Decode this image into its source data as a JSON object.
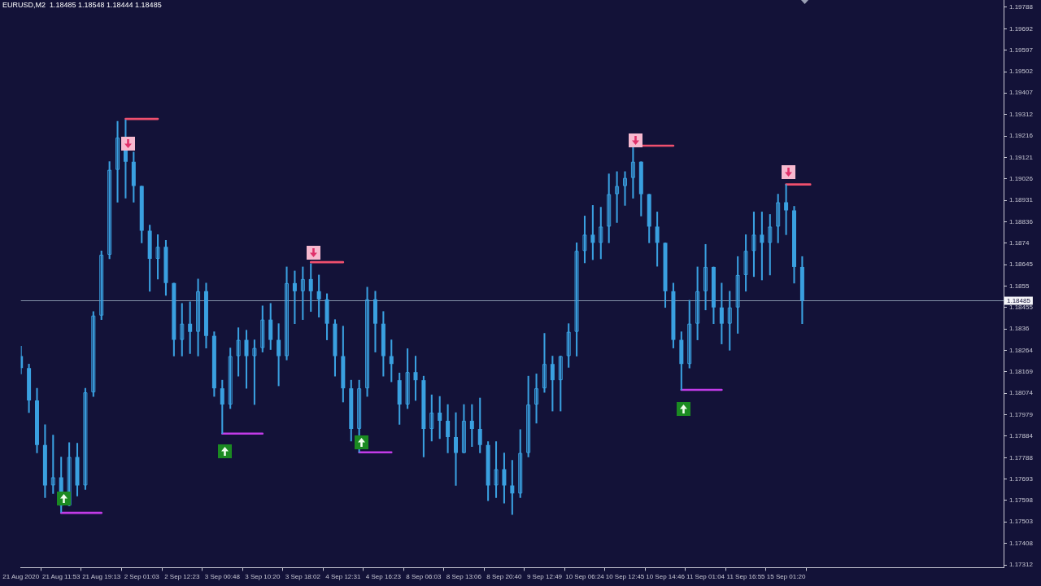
{
  "chart_data": {
    "type": "candlestick",
    "title": "EURUSD,M2  1.18485 1.18548 1.18444 1.18485",
    "categories": [
      "21 Aug 2020",
      null,
      null,
      null,
      null,
      "21 Aug 11:53",
      null,
      null,
      null,
      null,
      "21 Aug 19:13",
      null,
      null,
      null,
      null,
      "2 Sep 01:03",
      null,
      null,
      null,
      null,
      "2 Sep 12:23",
      null,
      null,
      null,
      null,
      "3 Sep 00:48",
      null,
      null,
      null,
      null,
      "3 Sep 10:20",
      null,
      null,
      null,
      null,
      "3 Sep 18:02",
      null,
      null,
      null,
      null,
      "4 Sep 12:31",
      null,
      null,
      null,
      null,
      "4 Sep 16:23",
      null,
      null,
      null,
      null,
      "8 Sep 06:03",
      null,
      null,
      null,
      null,
      "8 Sep 13:06",
      null,
      null,
      null,
      null,
      "8 Sep 20:40",
      null,
      null,
      null,
      null,
      "9 Sep 12:49",
      null,
      null,
      null,
      null,
      "10 Sep 06:24",
      null,
      null,
      null,
      null,
      "10 Sep 12:45",
      null,
      null,
      null,
      null,
      "10 Sep 14:46",
      null,
      null,
      null,
      null,
      "11 Sep 01:04",
      null,
      null,
      null,
      null,
      "11 Sep 16:55",
      null,
      null,
      null,
      null,
      "15 Sep 01:20",
      null,
      null,
      null,
      null,
      null,
      null,
      null,
      null,
      null,
      null,
      null,
      null,
      null,
      null,
      null,
      null,
      null,
      null,
      null,
      null,
      null,
      null,
      null,
      null,
      null,
      null,
      null
    ],
    "series": [
      {
        "color": "#3aa0e0",
        "ohlc": [
          [
            1.18239,
            1.18283,
            1.1816,
            1.18186
          ],
          [
            1.18186,
            1.18204,
            1.17988,
            1.18042
          ],
          [
            1.18042,
            1.18096,
            1.17809,
            1.17844
          ],
          [
            1.17844,
            1.17934,
            1.17611,
            1.17665
          ],
          [
            1.17665,
            1.17888,
            1.17629,
            1.17701
          ],
          [
            1.17701,
            1.17791,
            1.17546,
            1.17575
          ],
          [
            1.17575,
            1.17855,
            1.17575,
            1.17791
          ],
          [
            1.17791,
            1.17852,
            1.17618,
            1.17665
          ],
          [
            1.17665,
            1.18096,
            1.17647,
            1.18078
          ],
          [
            1.18078,
            1.18437,
            1.1806,
            1.18419
          ],
          [
            1.18419,
            1.18706,
            1.18401,
            1.18689
          ],
          [
            1.18689,
            1.19102,
            1.18671,
            1.19066
          ],
          [
            1.19066,
            1.19281,
            1.18922,
            1.19209
          ],
          [
            1.19209,
            1.19288,
            1.1894,
            1.19102
          ],
          [
            1.19102,
            1.19145,
            1.18922,
            1.18994
          ],
          [
            1.18994,
            1.18994,
            1.18742,
            1.18796
          ],
          [
            1.18796,
            1.18821,
            1.18527,
            1.18671
          ],
          [
            1.18671,
            1.18778,
            1.18581,
            1.18724
          ],
          [
            1.18724,
            1.18753,
            1.18509,
            1.18563
          ],
          [
            1.18563,
            1.18563,
            1.18239,
            1.18311
          ],
          [
            1.18311,
            1.18473,
            1.18239,
            1.18383
          ],
          [
            1.18383,
            1.1848,
            1.1825,
            1.18347
          ],
          [
            1.18347,
            1.18581,
            1.18239,
            1.18527
          ],
          [
            1.18527,
            1.18563,
            1.18275,
            1.18329
          ],
          [
            1.18329,
            1.18347,
            1.1806,
            1.18096
          ],
          [
            1.18096,
            1.18132,
            1.17895,
            1.18024
          ],
          [
            1.18024,
            1.18275,
            1.18006,
            1.18239
          ],
          [
            1.18239,
            1.18365,
            1.1815,
            1.18311
          ],
          [
            1.18311,
            1.18354,
            1.18096,
            1.18239
          ],
          [
            1.18239,
            1.18311,
            1.18024,
            1.18275
          ],
          [
            1.18275,
            1.18462,
            1.18257,
            1.18401
          ],
          [
            1.18401,
            1.18473,
            1.18268,
            1.18311
          ],
          [
            1.18311,
            1.18383,
            1.18107,
            1.18239
          ],
          [
            1.18239,
            1.18635,
            1.18222,
            1.18563
          ],
          [
            1.18563,
            1.18617,
            1.18383,
            1.18527
          ],
          [
            1.18527,
            1.18635,
            1.18401,
            1.18581
          ],
          [
            1.18581,
            1.18649,
            1.18437,
            1.18527
          ],
          [
            1.18527,
            1.18599,
            1.18412,
            1.18491
          ],
          [
            1.18491,
            1.18516,
            1.18311,
            1.18383
          ],
          [
            1.18383,
            1.18401,
            1.1815,
            1.18239
          ],
          [
            1.18239,
            1.18372,
            1.18035,
            1.18096
          ],
          [
            1.18096,
            1.18132,
            1.17862,
            1.17916
          ],
          [
            1.17916,
            1.18132,
            1.17812,
            1.18096
          ],
          [
            1.18096,
            1.18545,
            1.1806,
            1.18491
          ],
          [
            1.18491,
            1.18527,
            1.18257,
            1.18383
          ],
          [
            1.18383,
            1.18437,
            1.1815,
            1.18239
          ],
          [
            1.18239,
            1.18311,
            1.18125,
            1.18204
          ],
          [
            1.18132,
            1.18164,
            1.17936,
            1.18024
          ],
          [
            1.18024,
            1.18272,
            1.18006,
            1.18168
          ],
          [
            1.18168,
            1.18239,
            1.18042,
            1.18132
          ],
          [
            1.18132,
            1.1815,
            1.17791,
            1.17916
          ],
          [
            1.17916,
            1.18067,
            1.17862,
            1.17988
          ],
          [
            1.17988,
            1.1806,
            1.17873,
            1.17952
          ],
          [
            1.17952,
            1.18024,
            1.17809,
            1.1788
          ],
          [
            1.1788,
            1.17988,
            1.17665,
            1.17809
          ],
          [
            1.17809,
            1.18024,
            1.17809,
            1.17952
          ],
          [
            1.17952,
            1.18024,
            1.17837,
            1.17916
          ],
          [
            1.17916,
            1.18053,
            1.17809,
            1.17844
          ],
          [
            1.17844,
            1.17859,
            1.17597,
            1.17665
          ],
          [
            1.17665,
            1.17859,
            1.17611,
            1.17737
          ],
          [
            1.17737,
            1.17809,
            1.17586,
            1.17665
          ],
          [
            1.17665,
            1.17776,
            1.17536,
            1.17629
          ],
          [
            1.17629,
            1.17913,
            1.17611,
            1.17809
          ],
          [
            1.17809,
            1.1815,
            1.17791,
            1.18024
          ],
          [
            1.18024,
            1.1816,
            1.17941,
            1.18096
          ],
          [
            1.18096,
            1.1834,
            1.18078,
            1.18204
          ],
          [
            1.18204,
            1.18239,
            1.17995,
            1.18132
          ],
          [
            1.18132,
            1.18239,
            1.17995,
            1.18239
          ],
          [
            1.18239,
            1.18383,
            1.18189,
            1.18347
          ],
          [
            1.18347,
            1.18742,
            1.18239,
            1.18706
          ],
          [
            1.18706,
            1.18861,
            1.18653,
            1.18778
          ],
          [
            1.18778,
            1.18908,
            1.18667,
            1.18742
          ],
          [
            1.18742,
            1.189,
            1.18671,
            1.18814
          ],
          [
            1.18814,
            1.19048,
            1.18742,
            1.18958
          ],
          [
            1.18958,
            1.19058,
            1.18832,
            1.18994
          ],
          [
            1.18994,
            1.19058,
            1.18908,
            1.1903
          ],
          [
            1.1903,
            1.19173,
            1.1894,
            1.19102
          ],
          [
            1.19102,
            1.19102,
            1.18861,
            1.18958
          ],
          [
            1.18958,
            1.18958,
            1.18742,
            1.18814
          ],
          [
            1.18814,
            1.18879,
            1.18638,
            1.18742
          ],
          [
            1.18742,
            1.18742,
            1.18455,
            1.18527
          ],
          [
            1.18527,
            1.18563,
            1.18275,
            1.18311
          ],
          [
            1.18311,
            1.18347,
            1.18089,
            1.18204
          ],
          [
            1.18204,
            1.18487,
            1.18186,
            1.18383
          ],
          [
            1.18383,
            1.18635,
            1.18311,
            1.18527
          ],
          [
            1.18527,
            1.18735,
            1.18444,
            1.18635
          ],
          [
            1.18635,
            1.18635,
            1.18383,
            1.18455
          ],
          [
            1.18455,
            1.18563,
            1.18293,
            1.18383
          ],
          [
            1.18383,
            1.18527,
            1.18265,
            1.18455
          ],
          [
            1.18455,
            1.18681,
            1.1834,
            1.18599
          ],
          [
            1.18599,
            1.18778,
            1.18527,
            1.18706
          ],
          [
            1.18706,
            1.18879,
            1.18592,
            1.18778
          ],
          [
            1.18778,
            1.18879,
            1.18577,
            1.18742
          ],
          [
            1.18742,
            1.18868,
            1.18599,
            1.18814
          ],
          [
            1.18814,
            1.18958,
            1.18742,
            1.18922
          ],
          [
            1.18922,
            1.19001,
            1.18778,
            1.18886
          ],
          [
            1.18886,
            1.18904,
            1.18563,
            1.18635
          ],
          [
            1.18635,
            1.18681,
            1.18383,
            1.18485
          ],
          null,
          null,
          null,
          null,
          null,
          null,
          null,
          null,
          null,
          null,
          null,
          null,
          null,
          null,
          null,
          null,
          null,
          null,
          null,
          null,
          null,
          null,
          null,
          null,
          null
        ]
      },
      {
        "type": "line",
        "color": "#f0506e",
        "values": [
          null,
          null,
          null,
          null,
          null,
          null,
          null,
          null,
          null,
          null,
          null,
          null,
          null,
          1.19292,
          1.19292,
          1.19292,
          1.19292,
          1.19292,
          null,
          null,
          null,
          null,
          null,
          null,
          null,
          null,
          null,
          null,
          null,
          null,
          null,
          null,
          null,
          null,
          null,
          null,
          1.18656,
          1.18656,
          1.18656,
          1.18656,
          1.18656,
          null,
          null,
          null,
          null,
          null,
          null,
          null,
          null,
          null,
          null,
          null,
          null,
          null,
          null,
          null,
          null,
          null,
          null,
          null,
          null,
          null,
          null,
          null,
          null,
          null,
          null,
          null,
          null,
          null,
          null,
          null,
          null,
          null,
          null,
          null,
          1.19173,
          1.19173,
          1.19173,
          1.19173,
          1.19173,
          1.19173,
          null,
          null,
          null,
          null,
          null,
          null,
          null,
          null,
          null,
          null,
          null,
          null,
          null,
          1.19001,
          1.19001,
          1.19001,
          1.19001,
          null,
          null,
          null,
          null,
          null,
          null,
          null,
          null,
          null,
          null,
          null,
          null,
          null,
          null,
          null,
          null,
          null,
          null,
          null,
          null,
          null,
          null,
          null,
          null
        ]
      },
      {
        "type": "line",
        "color": "#c23be8",
        "values": [
          null,
          null,
          null,
          null,
          null,
          1.17543,
          1.17543,
          1.17543,
          1.17543,
          1.17543,
          1.17543,
          null,
          null,
          null,
          null,
          null,
          null,
          null,
          null,
          null,
          null,
          null,
          null,
          null,
          null,
          1.17895,
          1.17895,
          1.17895,
          1.17895,
          1.17895,
          1.17895,
          null,
          null,
          null,
          null,
          null,
          null,
          null,
          null,
          null,
          null,
          null,
          1.17812,
          1.17812,
          1.17812,
          1.17812,
          1.17812,
          null,
          null,
          null,
          null,
          null,
          null,
          null,
          null,
          null,
          null,
          null,
          null,
          null,
          null,
          null,
          null,
          null,
          null,
          null,
          null,
          null,
          null,
          null,
          null,
          null,
          null,
          null,
          null,
          null,
          null,
          null,
          null,
          null,
          null,
          null,
          1.18089,
          1.18089,
          1.18089,
          1.18089,
          1.18089,
          1.18089,
          null,
          null,
          null,
          null,
          null,
          null,
          null,
          null,
          null,
          null,
          null,
          null,
          null,
          null,
          null,
          null,
          null,
          null,
          null,
          null,
          null,
          null,
          null,
          null,
          null,
          null,
          null,
          null,
          null,
          null,
          null,
          null,
          null,
          null,
          null
        ]
      }
    ],
    "ylim": [
      1.173,
      1.1982
    ],
    "yticks": [
      1.19788,
      1.19692,
      1.19597,
      1.19502,
      1.19407,
      1.19312,
      1.19216,
      1.19121,
      1.19026,
      1.18931,
      1.18836,
      1.1874,
      1.18645,
      1.1855,
      1.18455,
      1.1836,
      1.18264,
      1.18169,
      1.18074,
      1.17979,
      1.17884,
      1.17788,
      1.17693,
      1.17598,
      1.17503,
      1.17408,
      1.17312
    ],
    "ref_lines": [
      {
        "axis": "y",
        "value": 1.18485,
        "label": "1.18485",
        "color": "#8391a8"
      }
    ],
    "grid": false,
    "legend": false
  }
}
